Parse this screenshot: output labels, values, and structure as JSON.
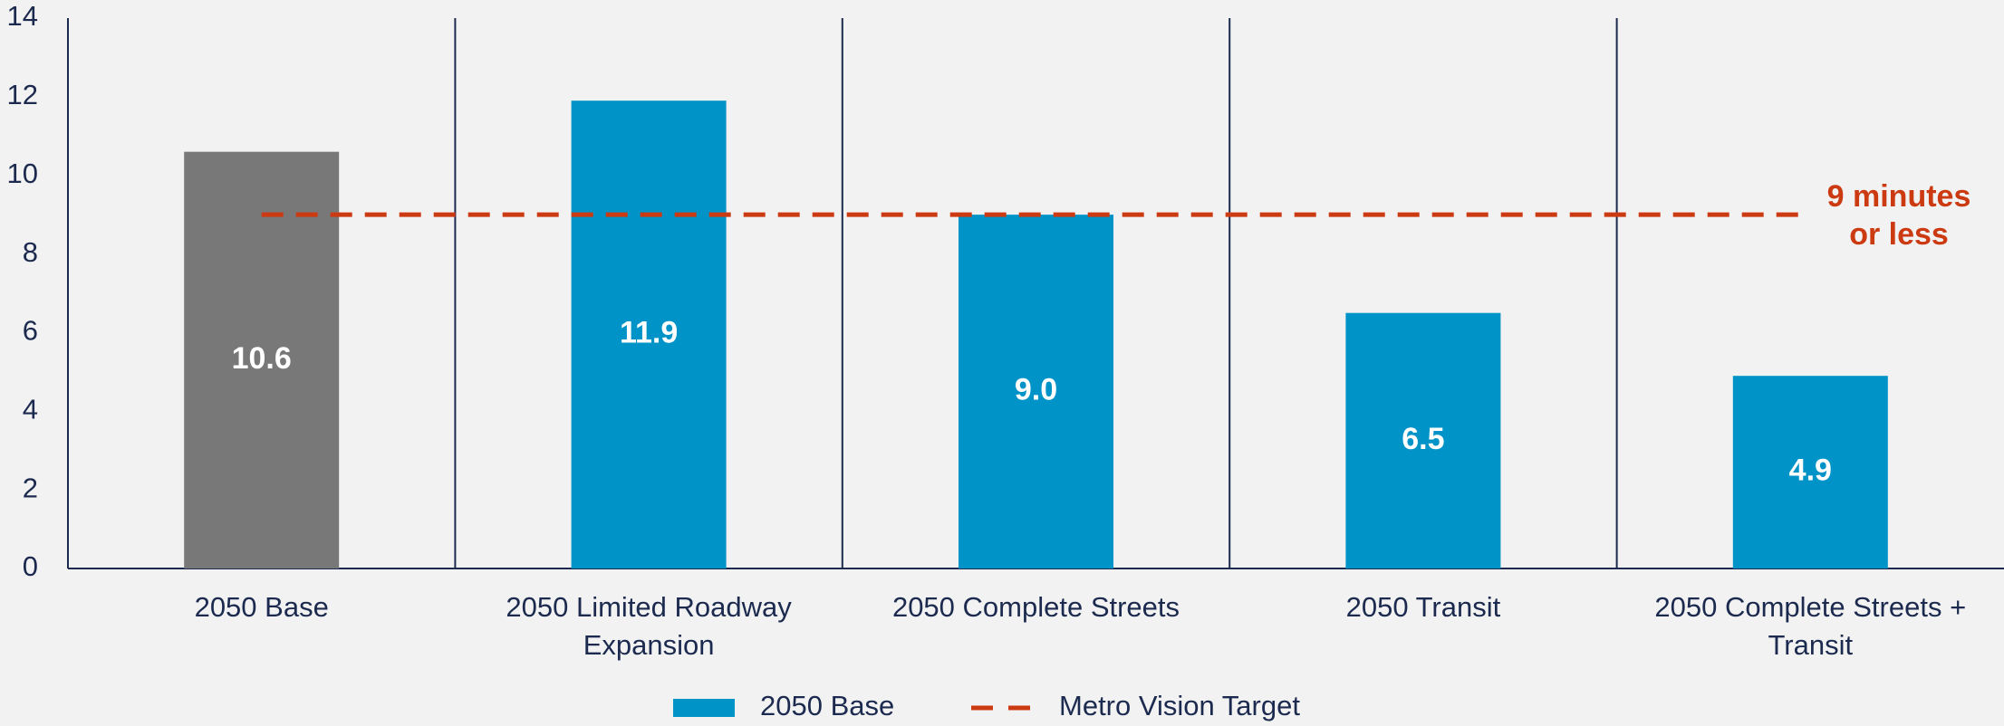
{
  "chart_data": {
    "type": "bar",
    "categories": [
      "2050 Base",
      "2050 Limited Roadway Expansion",
      "2050 Complete Streets",
      "2050 Transit",
      "2050 Complete Streets + Transit"
    ],
    "values": [
      10.6,
      11.9,
      9.0,
      6.5,
      4.9
    ],
    "value_labels": [
      "10.6",
      "11.9",
      "9.0",
      "6.5",
      "4.9"
    ],
    "colors": [
      "#787878",
      "#0093c8",
      "#0093c8",
      "#0093c8",
      "#0093c8"
    ],
    "ylim": [
      0,
      14
    ],
    "yticks": [
      0,
      2,
      4,
      6,
      8,
      10,
      12,
      14
    ],
    "legend": [
      {
        "name": "2050 Base",
        "color": "#0093c8"
      }
    ],
    "target": {
      "name": "Metro Vision Target",
      "value": 9,
      "color": "#cc3a12",
      "annotation": "9 minutes or less"
    }
  }
}
